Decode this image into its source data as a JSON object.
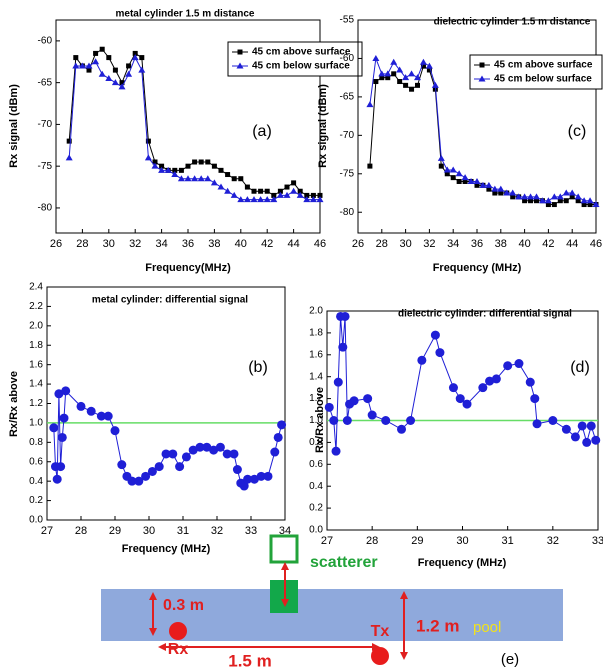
{
  "chart_data": [
    {
      "type": "line",
      "title": "metal cylinder  1.5 m distance",
      "panel_label": "(a)",
      "xlabel": "Frequency(MHz)",
      "ylabel": "Rx signal (dBm)",
      "x": [
        27,
        27.5,
        28,
        28.5,
        29,
        29.5,
        30,
        30.5,
        31,
        31.5,
        32,
        32.5,
        33,
        33.5,
        34,
        34.5,
        35,
        35.5,
        36,
        36.5,
        37,
        37.5,
        38,
        38.5,
        39,
        39.5,
        40,
        40.5,
        41,
        41.5,
        42,
        42.5,
        43,
        43.5,
        44,
        44.5,
        45,
        45.5,
        46
      ],
      "series": [
        {
          "name": "45 cm above surface",
          "color": "#000000",
          "marker": "square",
          "values": [
            -72,
            -62,
            -63,
            -63.5,
            -61.5,
            -61,
            -62,
            -63.5,
            -65,
            -63,
            -61.5,
            -62,
            -72,
            -74.5,
            -75,
            -75.5,
            -75.5,
            -75.5,
            -75,
            -74.5,
            -74.5,
            -74.5,
            -75,
            -75.5,
            -76,
            -76.5,
            -76.5,
            -77.5,
            -78,
            -78,
            -78,
            -78.5,
            -78,
            -77.5,
            -77,
            -78,
            -78.5,
            -78.5,
            -78.5
          ]
        },
        {
          "name": "45 cm below surface",
          "color": "#1f1fd6",
          "marker": "triangle",
          "values": [
            -74,
            -63,
            -63,
            -63,
            -62.5,
            -64,
            -64.5,
            -65,
            -65.5,
            -64,
            -62,
            -63.5,
            -74,
            -75,
            -75.5,
            -75.5,
            -76,
            -76.5,
            -76.5,
            -76.5,
            -76.5,
            -76.5,
            -77,
            -77.5,
            -78,
            -78.5,
            -79,
            -79,
            -79,
            -79,
            -79,
            -79,
            -78.5,
            -78.5,
            -78,
            -78.5,
            -79,
            -79,
            -79
          ]
        }
      ],
      "xlim": [
        26,
        46
      ],
      "xticks": [
        26,
        28,
        30,
        32,
        34,
        36,
        38,
        40,
        42,
        44,
        46
      ],
      "ylim": [
        -83,
        -57.5
      ],
      "yticks": [
        -80,
        -75,
        -70,
        -65,
        -60
      ],
      "legend": "upper right"
    },
    {
      "type": "line",
      "title": "metal cylinder: differential signal",
      "panel_label": "(b)",
      "xlabel": "Frequency (MHz)",
      "ylabel": "Rx/Rx above",
      "x": [
        27.2,
        27.25,
        27.3,
        27.35,
        27.4,
        27.45,
        27.5,
        27.55,
        28,
        28.3,
        28.6,
        28.8,
        29,
        29.2,
        29.35,
        29.5,
        29.7,
        29.9,
        30.1,
        30.3,
        30.5,
        30.7,
        30.9,
        31.1,
        31.3,
        31.5,
        31.7,
        31.9,
        32.1,
        32.3,
        32.5,
        32.6,
        32.7,
        32.8,
        32.9,
        33.1,
        33.3,
        33.5,
        33.7,
        33.8,
        33.9
      ],
      "series": [
        {
          "color": "#1f1fd6",
          "marker": "circle",
          "values": [
            0.95,
            0.55,
            0.42,
            1.3,
            0.55,
            0.85,
            1.05,
            1.33,
            1.17,
            1.12,
            1.07,
            1.07,
            0.92,
            0.57,
            0.45,
            0.4,
            0.4,
            0.45,
            0.5,
            0.55,
            0.68,
            0.68,
            0.55,
            0.65,
            0.72,
            0.75,
            0.75,
            0.72,
            0.75,
            0.68,
            0.68,
            0.52,
            0.38,
            0.35,
            0.42,
            0.42,
            0.45,
            0.45,
            0.7,
            0.85,
            0.98
          ]
        }
      ],
      "hline": {
        "value": 1,
        "color": "#66dd66"
      },
      "xlim": [
        27,
        34
      ],
      "xticks": [
        27,
        28,
        29,
        30,
        31,
        32,
        33,
        34
      ],
      "ylim": [
        0,
        2.4
      ],
      "yticks": [
        {
          "value": 0,
          "label": "0.0"
        },
        0.2,
        0.4,
        0.6,
        0.8,
        {
          "value": 1,
          "label": "1.0"
        },
        1.2,
        1.4,
        1.6,
        1.8,
        {
          "value": 2,
          "label": "2.0"
        },
        2.2,
        2.4
      ]
    },
    {
      "type": "line",
      "title": "dielectric cylinder  1.5 m distance",
      "panel_label": "(c)",
      "xlabel": "Frequency (MHz)",
      "ylabel": "Rx signal (dBm)",
      "x": [
        27,
        27.5,
        28,
        28.5,
        29,
        29.5,
        30,
        30.5,
        31,
        31.5,
        32,
        32.5,
        33,
        33.5,
        34,
        34.5,
        35,
        35.5,
        36,
        36.5,
        37,
        37.5,
        38,
        38.5,
        39,
        39.5,
        40,
        40.5,
        41,
        41.5,
        42,
        42.5,
        43,
        43.5,
        44,
        44.5,
        45,
        45.5,
        46
      ],
      "series": [
        {
          "name": "45 cm above surface",
          "color": "#000000",
          "marker": "square",
          "values": [
            -74,
            -63,
            -62.5,
            -62.5,
            -62,
            -63,
            -63.5,
            -64,
            -63.5,
            -61,
            -61.5,
            -64,
            -74,
            -75,
            -75.5,
            -76,
            -76,
            -76,
            -76.5,
            -76.5,
            -77,
            -77.5,
            -77.5,
            -77.5,
            -78,
            -78,
            -78.5,
            -78.5,
            -78.5,
            -78.5,
            -79,
            -79,
            -78.5,
            -78.5,
            -78,
            -78.5,
            -79,
            -79,
            -79
          ]
        },
        {
          "name": "45 cm below surface",
          "color": "#1f1fd6",
          "marker": "triangle",
          "values": [
            -66,
            -60,
            -62,
            -62,
            -60.5,
            -61.5,
            -62.5,
            -62,
            -62.5,
            -60.5,
            -61,
            -63.5,
            -73,
            -74.5,
            -74.5,
            -75,
            -75.5,
            -76,
            -76,
            -76.5,
            -76.5,
            -77,
            -77,
            -77.5,
            -77.5,
            -78,
            -78,
            -78,
            -78,
            -78.5,
            -78.5,
            -78,
            -78,
            -77.5,
            -77.5,
            -78,
            -78.5,
            -78.5,
            -79
          ]
        }
      ],
      "xlim": [
        26,
        46
      ],
      "xticks": [
        26,
        28,
        30,
        32,
        34,
        36,
        38,
        40,
        42,
        44,
        46
      ],
      "ylim": [
        -82.7,
        -55
      ],
      "yticks": [
        -80,
        -75,
        -70,
        -65,
        -60,
        -55
      ],
      "legend": "upper right"
    },
    {
      "type": "line",
      "title": "dielectric cylinder: differential signal",
      "panel_label": "(d)",
      "xlabel": "Frequency (MHz)",
      "ylabel": "Rx/Rx above",
      "x": [
        27.05,
        27.15,
        27.2,
        27.25,
        27.3,
        27.35,
        27.4,
        27.45,
        27.5,
        27.6,
        27.9,
        28,
        28.3,
        28.65,
        28.85,
        29.1,
        29.4,
        29.5,
        29.8,
        29.95,
        30.1,
        30.45,
        30.6,
        30.75,
        31,
        31.25,
        31.5,
        31.6,
        31.65,
        32,
        32.3,
        32.5,
        32.65,
        32.75,
        32.85,
        32.95
      ],
      "series": [
        {
          "color": "#1f1fd6",
          "marker": "circle",
          "values": [
            1.12,
            1,
            0.72,
            1.35,
            1.95,
            1.67,
            1.95,
            1,
            1.15,
            1.18,
            1.2,
            1.05,
            1,
            0.92,
            1,
            1.55,
            1.78,
            1.62,
            1.3,
            1.2,
            1.15,
            1.3,
            1.36,
            1.38,
            1.5,
            1.52,
            1.35,
            1.2,
            0.97,
            1,
            0.92,
            0.85,
            0.95,
            0.8,
            0.95,
            0.82
          ]
        }
      ],
      "hline": {
        "value": 1,
        "color": "#66dd66"
      },
      "xlim": [
        27,
        33
      ],
      "xticks": [
        27,
        28,
        29,
        30,
        31,
        32,
        33
      ],
      "ylim": [
        0,
        2
      ],
      "yticks": [
        {
          "value": 0,
          "label": "0.0"
        },
        0.2,
        0.4,
        0.6,
        0.8,
        {
          "value": 1,
          "label": "1.0"
        },
        1.2,
        1.4,
        1.6,
        1.8,
        {
          "value": 2,
          "label": "2.0"
        }
      ]
    }
  ],
  "diagram": {
    "scatterer": "scatterer",
    "depth": "0.3 m",
    "rx": "Rx",
    "tx": "Tx",
    "height": "1.2 m",
    "pool": "pool",
    "distance": "1.5 m",
    "panel_label": "(e)"
  }
}
